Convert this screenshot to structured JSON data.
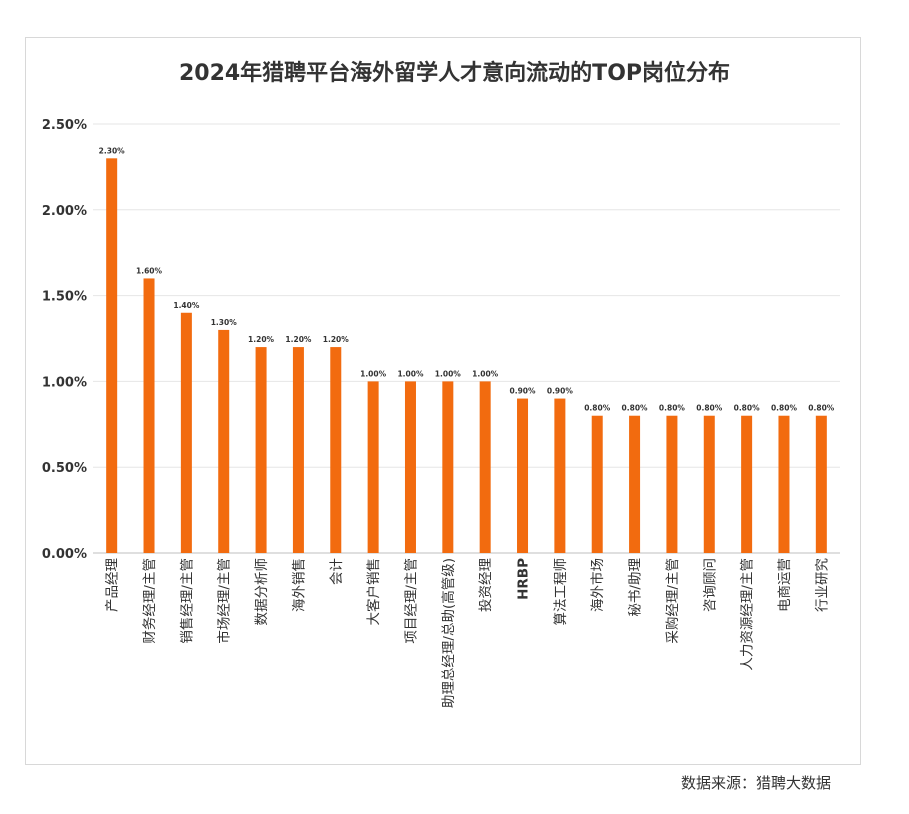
{
  "chart_data": {
    "type": "bar",
    "title": "2024年猎聘平台海外留学人才意向流动的TOP岗位分布",
    "xlabel": "",
    "ylabel": "",
    "ylim": [
      0,
      2.5
    ],
    "yticks": [
      "0.00%",
      "0.50%",
      "1.00%",
      "1.50%",
      "2.00%",
      "2.50%"
    ],
    "ytick_values": [
      0,
      0.5,
      1.0,
      1.5,
      2.0,
      2.5
    ],
    "categories": [
      "产品经理",
      "财务经理/主管",
      "销售经理/主管",
      "市场经理/主管",
      "数据分析师",
      "海外销售",
      "会计",
      "大客户销售",
      "项目经理/主管",
      "助理总经理/总助(高管级)",
      "投资经理",
      "HRBP",
      "算法工程师",
      "海外市场",
      "秘书/助理",
      "采购经理/主管",
      "咨询顾问",
      "人力资源经理/主管",
      "电商运营",
      "行业研究"
    ],
    "values": [
      2.3,
      1.6,
      1.4,
      1.3,
      1.2,
      1.2,
      1.2,
      1.0,
      1.0,
      1.0,
      1.0,
      0.9,
      0.9,
      0.8,
      0.8,
      0.8,
      0.8,
      0.8,
      0.8,
      0.8
    ],
    "data_labels": [
      "2.30%",
      "1.60%",
      "1.40%",
      "1.30%",
      "1.20%",
      "1.20%",
      "1.20%",
      "1.00%",
      "1.00%",
      "1.00%",
      "1.00%",
      "0.90%",
      "0.90%",
      "0.80%",
      "0.80%",
      "0.80%",
      "0.80%",
      "0.80%",
      "0.80%",
      "0.80%"
    ],
    "grid": true,
    "bar_color": "#f26b0f"
  },
  "source_text": "数据来源：猎聘大数据"
}
